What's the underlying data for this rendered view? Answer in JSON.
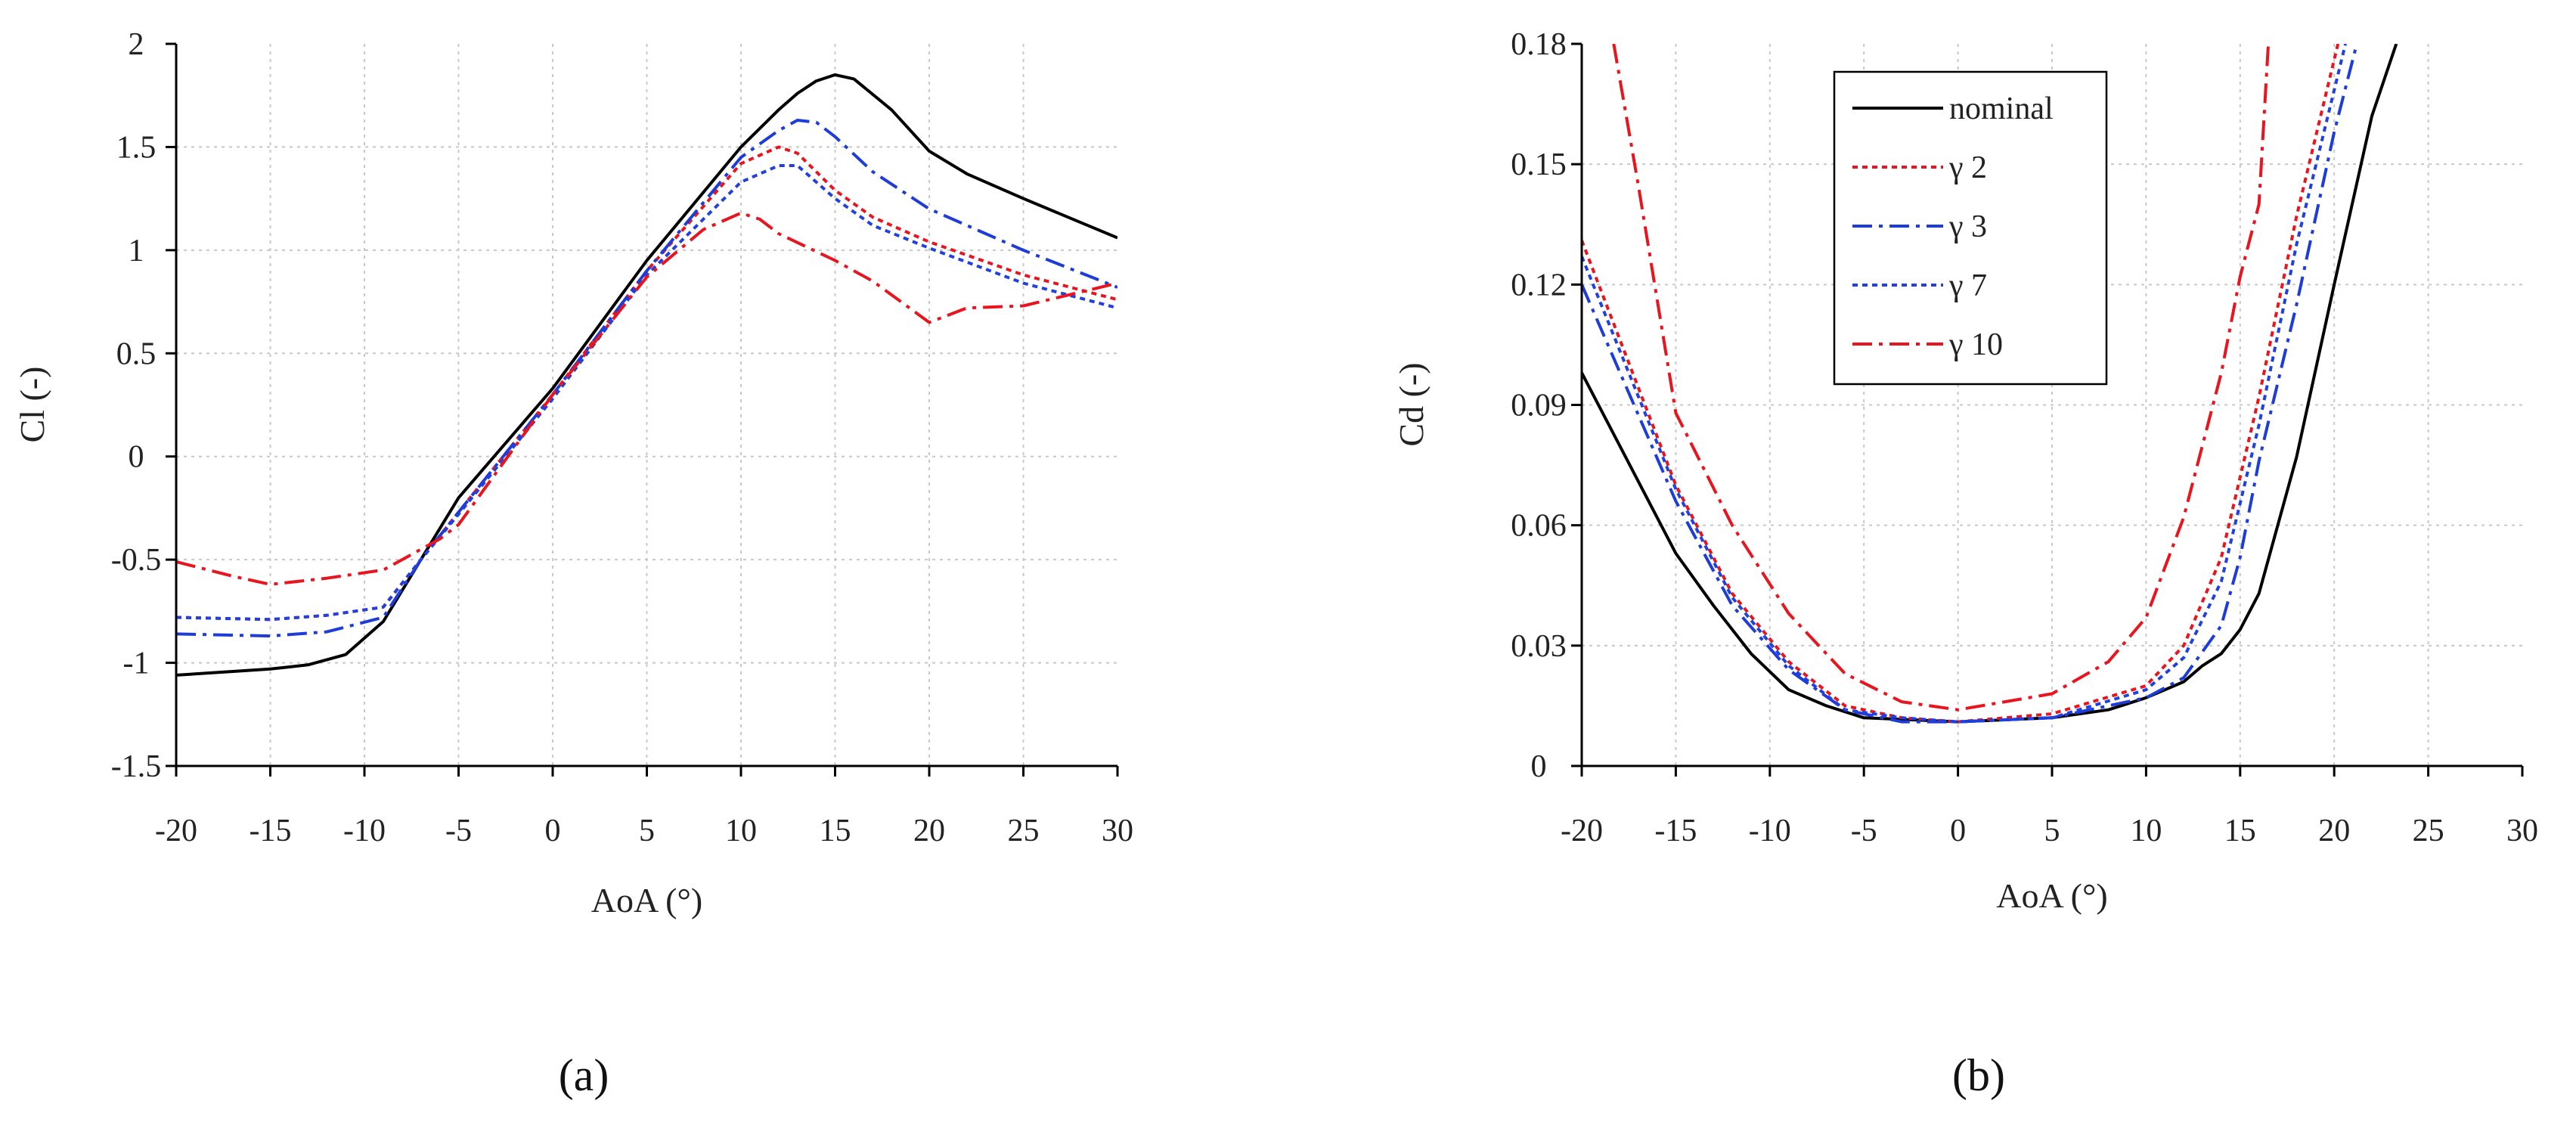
{
  "chart_data": [
    {
      "type": "line",
      "panel_label": "(a)",
      "xlabel": "AoA (°)",
      "ylabel": "Cl (-)",
      "xlim": [
        -20,
        30
      ],
      "ylim": [
        -1.5,
        2
      ],
      "xticks": [
        -20,
        -15,
        -10,
        -5,
        0,
        5,
        10,
        15,
        20,
        25,
        30
      ],
      "yticks": [
        -1.5,
        -1,
        -0.5,
        0,
        0.5,
        1,
        1.5,
        2
      ],
      "xtick_labels": [
        "-20",
        "-15",
        "-10",
        "-5",
        "0",
        "5",
        "10",
        "15",
        "20",
        "25",
        "30"
      ],
      "ytick_labels": [
        "-1.5",
        "-1",
        "-0.5",
        "0",
        "0.5",
        "1",
        "1.5",
        "2"
      ],
      "grid": true,
      "series": [
        {
          "name": "nominal",
          "color": "#000000",
          "dash": "solid",
          "x": [
            -20,
            -15,
            -13,
            -11,
            -9,
            -7,
            -5,
            0,
            5,
            10,
            12,
            13,
            14,
            15,
            16,
            18,
            20,
            22,
            25,
            30
          ],
          "y": [
            -1.06,
            -1.03,
            -1.01,
            -0.96,
            -0.8,
            -0.5,
            -0.2,
            0.33,
            0.95,
            1.5,
            1.68,
            1.76,
            1.82,
            1.85,
            1.83,
            1.68,
            1.48,
            1.37,
            1.25,
            1.06
          ]
        },
        {
          "name": "γ 2",
          "color": "#e8141e",
          "dash": "dot",
          "x": [
            -20,
            -15,
            -12,
            -9,
            -7,
            -5,
            0,
            5,
            10,
            12,
            13,
            15,
            17,
            20,
            25,
            30
          ],
          "y": [
            -0.78,
            -0.79,
            -0.77,
            -0.73,
            -0.5,
            -0.27,
            0.3,
            0.9,
            1.42,
            1.5,
            1.47,
            1.29,
            1.16,
            1.04,
            0.88,
            0.76
          ]
        },
        {
          "name": "γ 3",
          "color": "#1e3cd8",
          "dash": "dashdot",
          "x": [
            -20,
            -15,
            -12,
            -9,
            -7,
            -5,
            0,
            5,
            10,
            12,
            13,
            14,
            15,
            17,
            20,
            25,
            30
          ],
          "y": [
            -0.86,
            -0.87,
            -0.85,
            -0.78,
            -0.5,
            -0.27,
            0.3,
            0.9,
            1.45,
            1.58,
            1.63,
            1.62,
            1.55,
            1.38,
            1.2,
            1.0,
            0.82
          ]
        },
        {
          "name": "γ 7",
          "color": "#2040e0",
          "dash": "dot",
          "x": [
            -20,
            -15,
            -12,
            -9,
            -7,
            -5,
            0,
            5,
            10,
            12,
            13,
            15,
            17,
            20,
            25,
            30
          ],
          "y": [
            -0.78,
            -0.79,
            -0.77,
            -0.73,
            -0.5,
            -0.28,
            0.28,
            0.88,
            1.33,
            1.41,
            1.41,
            1.25,
            1.12,
            1.01,
            0.84,
            0.72
          ]
        },
        {
          "name": "γ 10",
          "color": "#e8141e",
          "dash": "dashdot",
          "x": [
            -20,
            -17,
            -15,
            -12,
            -9,
            -7,
            -6,
            -5,
            0,
            5,
            8,
            10,
            11,
            12,
            15,
            17,
            20,
            22,
            25,
            30
          ],
          "y": [
            -0.51,
            -0.58,
            -0.62,
            -0.59,
            -0.55,
            -0.45,
            -0.4,
            -0.33,
            0.3,
            0.87,
            1.1,
            1.18,
            1.15,
            1.08,
            0.95,
            0.85,
            0.65,
            0.72,
            0.73,
            0.84
          ]
        }
      ]
    },
    {
      "type": "line",
      "panel_label": "(b)",
      "xlabel": "AoA (°)",
      "ylabel": "Cd (-)",
      "xlim": [
        -20,
        30
      ],
      "ylim": [
        0,
        0.18
      ],
      "xticks": [
        -20,
        -15,
        -10,
        -5,
        0,
        5,
        10,
        15,
        20,
        25,
        30
      ],
      "yticks": [
        0,
        0.03,
        0.06,
        0.09,
        0.12,
        0.15,
        0.18
      ],
      "xtick_labels": [
        "-20",
        "-15",
        "-10",
        "-5",
        "0",
        "5",
        "10",
        "15",
        "20",
        "25",
        "30"
      ],
      "ytick_labels": [
        "0",
        "0.03",
        "0.06",
        "0.09",
        "0.12",
        "0.15",
        "0.18"
      ],
      "grid": true,
      "legend_position": "top-center",
      "series": [
        {
          "name": "nominal",
          "color": "#000000",
          "dash": "solid",
          "x": [
            -20,
            -15,
            -13,
            -11,
            -9,
            -7,
            -5,
            0,
            5,
            8,
            10,
            12,
            13,
            14,
            15,
            16,
            18,
            20,
            22,
            23.3
          ],
          "y": [
            0.098,
            0.053,
            0.04,
            0.028,
            0.019,
            0.015,
            0.012,
            0.011,
            0.012,
            0.014,
            0.017,
            0.021,
            0.025,
            0.028,
            0.034,
            0.043,
            0.077,
            0.12,
            0.162,
            0.18
          ]
        },
        {
          "name": "γ 2",
          "color": "#e8141e",
          "dash": "dot",
          "x": [
            -20,
            -15,
            -12,
            -9,
            -6,
            -3,
            0,
            5,
            10,
            12,
            14,
            16,
            18,
            20.2
          ],
          "y": [
            0.131,
            0.07,
            0.043,
            0.026,
            0.015,
            0.012,
            0.011,
            0.013,
            0.02,
            0.03,
            0.052,
            0.092,
            0.137,
            0.18
          ]
        },
        {
          "name": "γ 3",
          "color": "#1e3cd8",
          "dash": "dashdot",
          "x": [
            -20,
            -15,
            -12,
            -9,
            -6,
            -3,
            0,
            5,
            10,
            12,
            14,
            15,
            16,
            18,
            20,
            21.2
          ],
          "y": [
            0.12,
            0.066,
            0.04,
            0.024,
            0.014,
            0.011,
            0.011,
            0.012,
            0.017,
            0.022,
            0.035,
            0.052,
            0.076,
            0.115,
            0.158,
            0.18
          ]
        },
        {
          "name": "γ 7",
          "color": "#2040e0",
          "dash": "dot",
          "x": [
            -20,
            -15,
            -12,
            -9,
            -6,
            -3,
            0,
            5,
            10,
            12,
            14,
            16,
            18,
            20.6
          ],
          "y": [
            0.127,
            0.069,
            0.042,
            0.025,
            0.014,
            0.012,
            0.011,
            0.012,
            0.019,
            0.027,
            0.046,
            0.085,
            0.13,
            0.18
          ]
        },
        {
          "name": "γ 10",
          "color": "#e8141e",
          "dash": "dashdot",
          "x": [
            -18.3,
            -17,
            -15,
            -12,
            -9,
            -6,
            -3,
            0,
            5,
            8,
            10,
            12,
            14,
            15,
            16,
            16.5
          ],
          "y": [
            0.18,
            0.145,
            0.088,
            0.06,
            0.038,
            0.023,
            0.016,
            0.014,
            0.018,
            0.026,
            0.037,
            0.062,
            0.098,
            0.122,
            0.14,
            0.18
          ]
        }
      ]
    }
  ]
}
